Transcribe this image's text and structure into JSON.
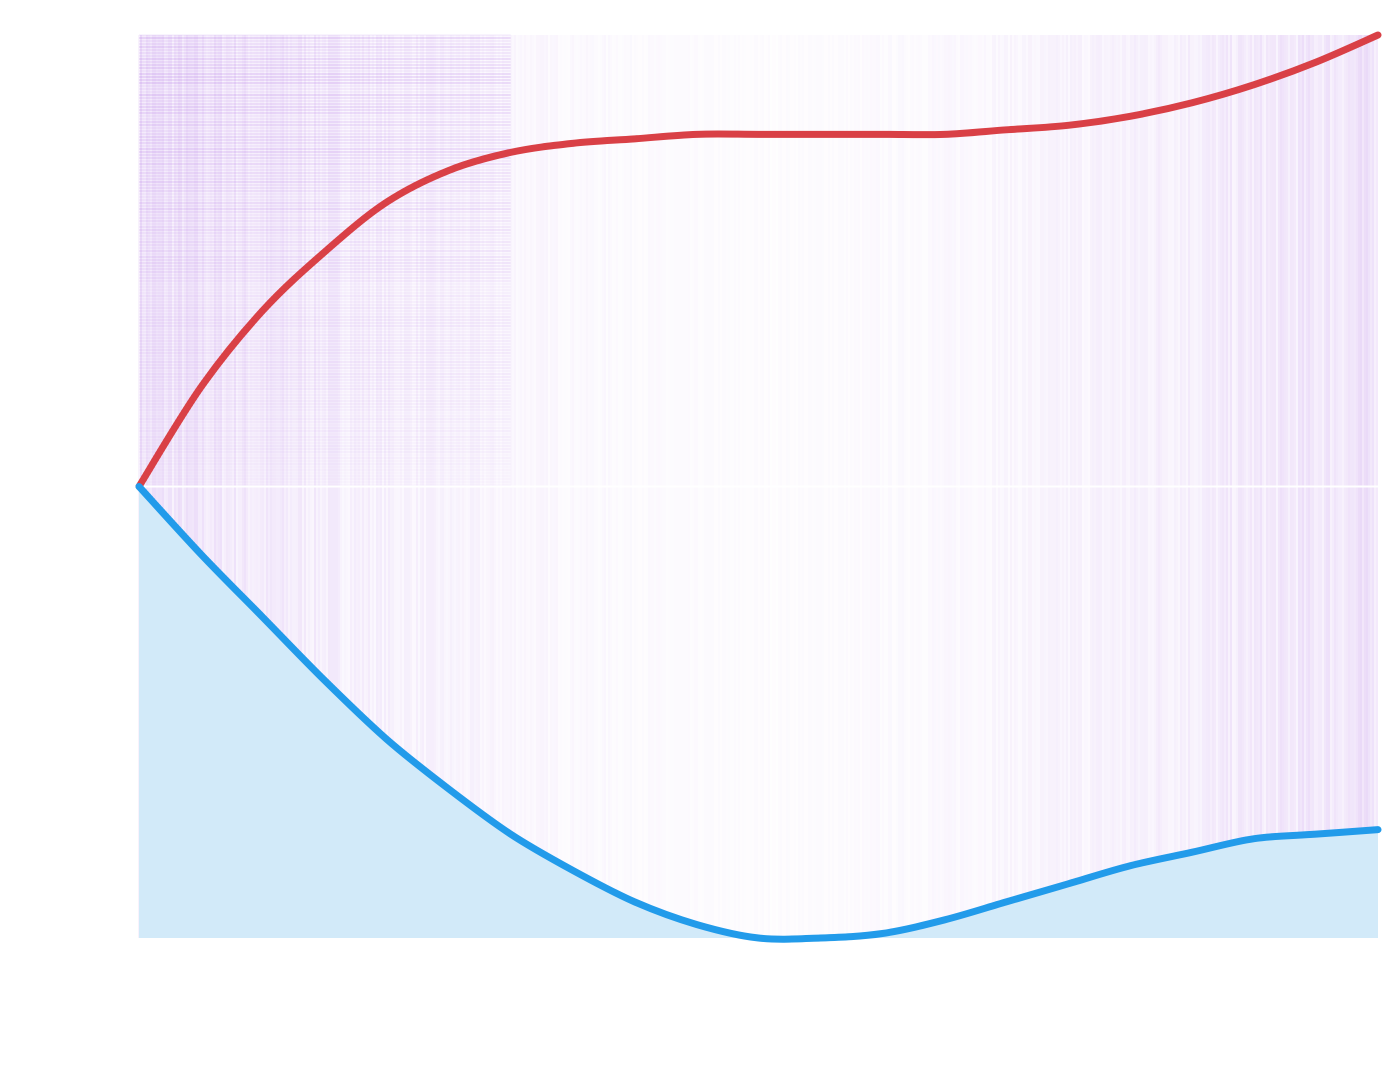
{
  "chart_data": {
    "type": "area",
    "title": "",
    "xlabel": "",
    "ylabel": "",
    "xlim": [
      0,
      1
    ],
    "ylim": [
      -1,
      1
    ],
    "grid": false,
    "legend": "none",
    "x": [
      0,
      0.05,
      0.1,
      0.15,
      0.2,
      0.25,
      0.3,
      0.35,
      0.4,
      0.45,
      0.5,
      0.55,
      0.6,
      0.65,
      0.7,
      0.75,
      0.8,
      0.85,
      0.9,
      0.95,
      1.0
    ],
    "series": [
      {
        "color": "#d94046",
        "fill": false,
        "values": [
          0.0,
          0.22,
          0.39,
          0.52,
          0.63,
          0.7,
          0.74,
          0.76,
          0.77,
          0.78,
          0.78,
          0.78,
          0.78,
          0.78,
          0.79,
          0.8,
          0.82,
          0.85,
          0.89,
          0.94,
          1.0
        ]
      },
      {
        "color": "#229bea",
        "fill": true,
        "fill_color": "#d2eaf9",
        "values": [
          0.0,
          -0.15,
          -0.29,
          -0.43,
          -0.56,
          -0.67,
          -0.77,
          -0.85,
          -0.92,
          -0.97,
          -1.0,
          -1.0,
          -0.99,
          -0.96,
          -0.92,
          -0.88,
          -0.84,
          -0.81,
          -0.78,
          -0.77,
          -0.76
        ]
      }
    ],
    "texture": {
      "color": "#a35be0"
    }
  }
}
